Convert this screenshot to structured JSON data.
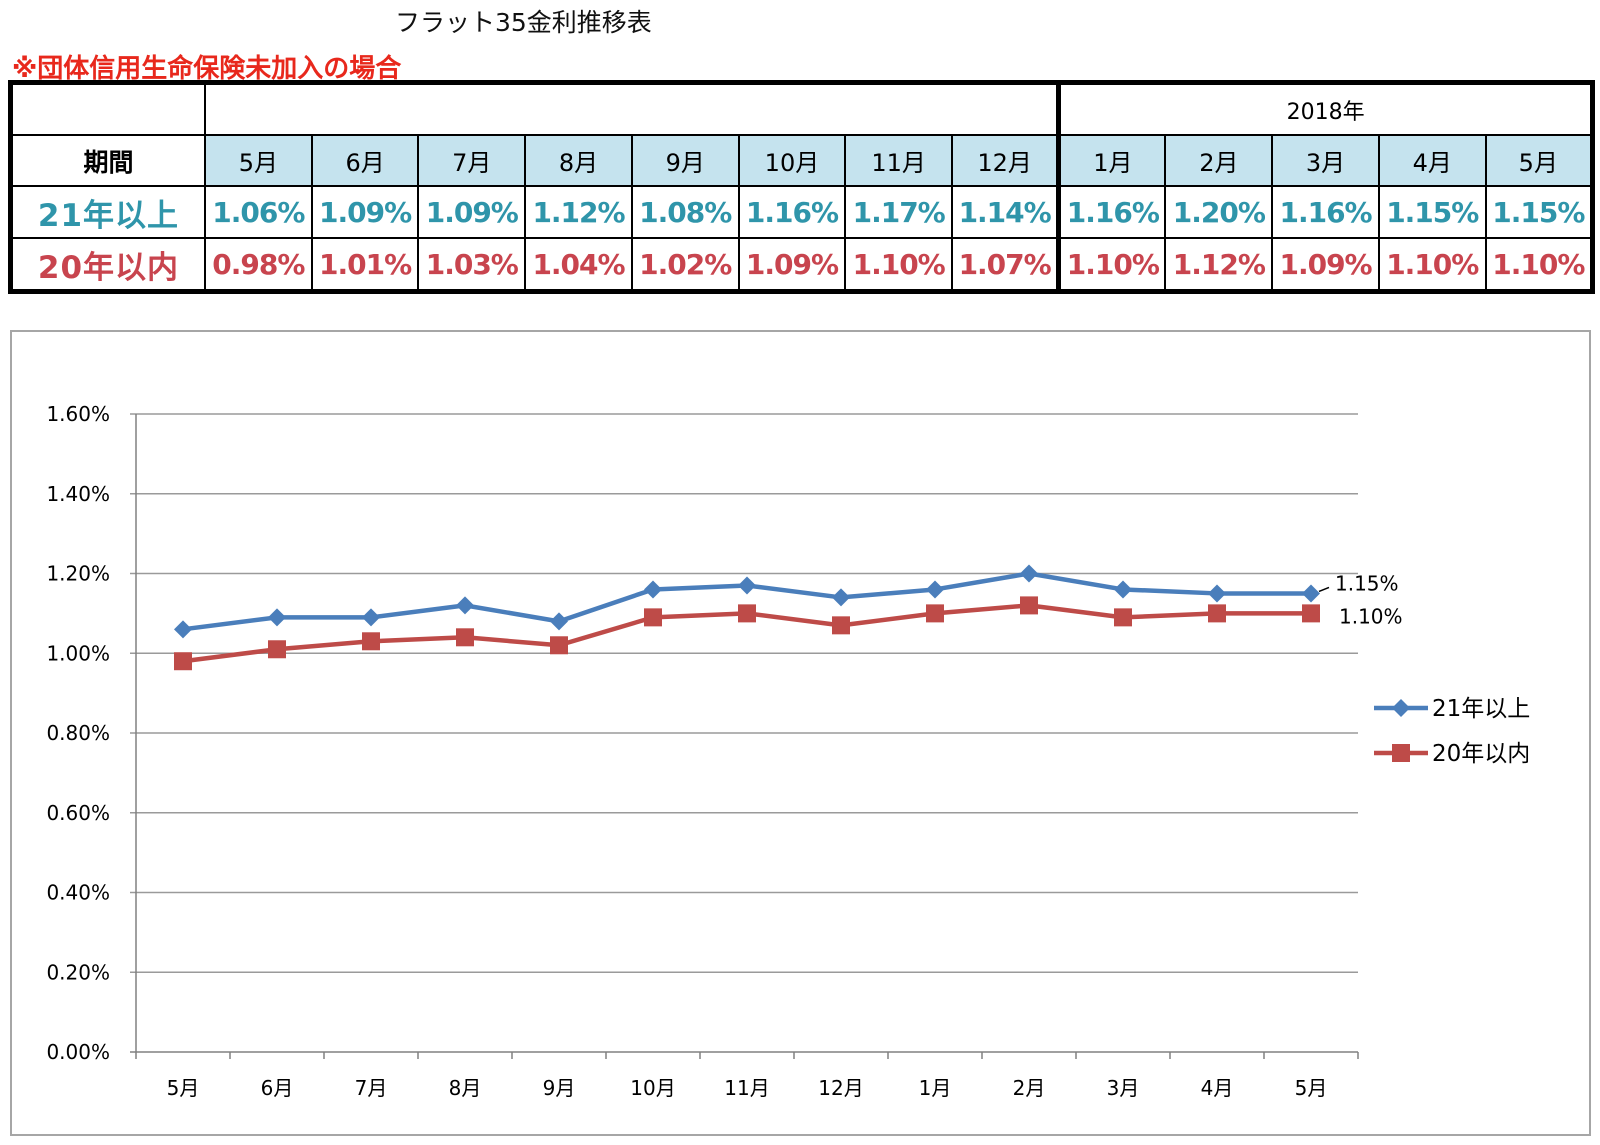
{
  "title": "フラット35金利推移表",
  "note": "※団体信用生命保険未加入の場合",
  "table": {
    "year_label": "2018年",
    "period_label": "期間",
    "months": [
      "5月",
      "6月",
      "7月",
      "8月",
      "9月",
      "10月",
      "11月",
      "12月",
      "1月",
      "2月",
      "3月",
      "4月",
      "5月"
    ],
    "rows": [
      {
        "label": "21年以上",
        "values": [
          "1.06%",
          "1.09%",
          "1.09%",
          "1.12%",
          "1.08%",
          "1.16%",
          "1.17%",
          "1.14%",
          "1.16%",
          "1.20%",
          "1.16%",
          "1.15%",
          "1.15%"
        ]
      },
      {
        "label": "20年以内",
        "values": [
          "0.98%",
          "1.01%",
          "1.03%",
          "1.04%",
          "1.02%",
          "1.09%",
          "1.10%",
          "1.07%",
          "1.10%",
          "1.12%",
          "1.09%",
          "1.10%",
          "1.10%"
        ]
      }
    ]
  },
  "chart_data": {
    "type": "line",
    "categories": [
      "5月",
      "6月",
      "7月",
      "8月",
      "9月",
      "10月",
      "11月",
      "12月",
      "1月",
      "2月",
      "3月",
      "4月",
      "5月"
    ],
    "ylim": [
      0,
      1.6
    ],
    "yticks": [
      "0.00%",
      "0.20%",
      "0.40%",
      "0.60%",
      "0.80%",
      "1.00%",
      "1.20%",
      "1.40%",
      "1.60%"
    ],
    "grid": true,
    "legend": "right",
    "series": [
      {
        "name": "21年以上",
        "values": [
          1.06,
          1.09,
          1.09,
          1.12,
          1.08,
          1.16,
          1.17,
          1.14,
          1.16,
          1.2,
          1.16,
          1.15,
          1.15
        ],
        "color": "#4a7ebb",
        "marker": "diamond",
        "end_label": "1.15%"
      },
      {
        "name": "20年以内",
        "values": [
          0.98,
          1.01,
          1.03,
          1.04,
          1.02,
          1.09,
          1.1,
          1.07,
          1.1,
          1.12,
          1.09,
          1.1,
          1.1
        ],
        "color": "#be4b48",
        "marker": "square",
        "end_label": "1.10%"
      }
    ]
  }
}
